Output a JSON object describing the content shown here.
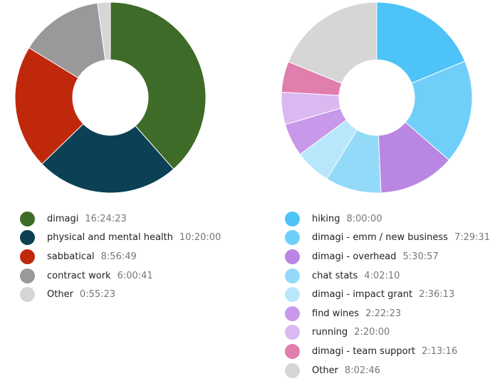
{
  "chart_data": [
    {
      "type": "pie",
      "variant": "donut",
      "slices": [
        {
          "label": "dimagi",
          "time": "16:24:23",
          "color": "#3e6b27"
        },
        {
          "label": "physical and mental health",
          "time": "10:20:00",
          "color": "#0b4055"
        },
        {
          "label": "sabbatical",
          "time": "8:56:49",
          "color": "#c0280c"
        },
        {
          "label": "contract work",
          "time": "6:00:41",
          "color": "#999999"
        },
        {
          "label": "Other",
          "time": "0:55:23",
          "color": "#d6d6d6"
        }
      ]
    },
    {
      "type": "pie",
      "variant": "donut",
      "slices": [
        {
          "label": "hiking",
          "time": "8:00:00",
          "color": "#4dc3f7"
        },
        {
          "label": "dimagi - emm / new business",
          "time": "7:29:31",
          "color": "#70cff8"
        },
        {
          "label": "dimagi - overhead",
          "time": "5:30:57",
          "color": "#b986e3"
        },
        {
          "label": "chat stats",
          "time": "4:02:10",
          "color": "#93daf9"
        },
        {
          "label": "dimagi - impact grant",
          "time": "2:36:13",
          "color": "#b8e7fb"
        },
        {
          "label": "find wines",
          "time": "2:22:23",
          "color": "#c898ea"
        },
        {
          "label": "running",
          "time": "2:20:00",
          "color": "#dab8f1"
        },
        {
          "label": "dimagi - team support",
          "time": "2:13:16",
          "color": "#e07ead"
        },
        {
          "label": "Other",
          "time": "8:02:46",
          "color": "#d6d6d6"
        }
      ]
    }
  ]
}
